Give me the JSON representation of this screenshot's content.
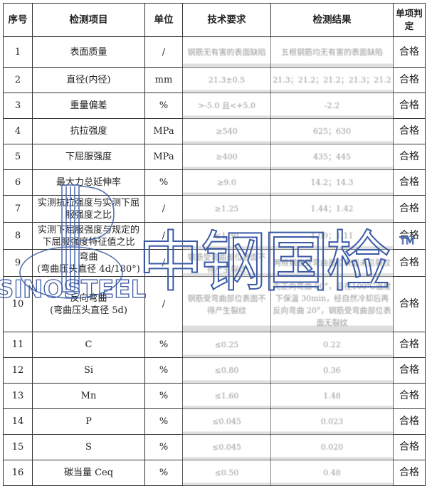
{
  "headers": [
    "序号",
    "检测项目",
    "单位",
    "技术要求",
    "检测结果",
    "单项判定"
  ],
  "rows": [
    {
      "no": "1",
      "item": "表面质量",
      "unit": "/",
      "req": "钢筋无有害的表面缺陷",
      "result": "五根钢筋均无有害的表面缺陷",
      "verdict": "合格"
    },
    {
      "no": "2",
      "item": "直径(内径)",
      "unit": "mm",
      "req": "21.3±0.5",
      "result": "21.3；21.2；21.2；21.3；21.2",
      "verdict": "合格"
    },
    {
      "no": "3",
      "item": "重量偏差",
      "unit": "%",
      "req": ">-5.0 且<+5.0",
      "result": "-2.2",
      "verdict": "合格"
    },
    {
      "no": "4",
      "item": "抗拉强度",
      "unit": "MPa",
      "req": "≥540",
      "result": "625；630",
      "verdict": "合格"
    },
    {
      "no": "5",
      "item": "下屈服强度",
      "unit": "MPa",
      "req": "≥400",
      "result": "435；445",
      "verdict": "合格"
    },
    {
      "no": "6",
      "item": "最大力总延伸率",
      "unit": "%",
      "req": "≥9.0",
      "result": "14.2；14.3",
      "verdict": "合格"
    },
    {
      "no": "7",
      "item": "实测抗拉强度与实测下屈服强度之比",
      "unit": "/",
      "req": "≥1.25",
      "result": "1.44；1.42",
      "verdict": "合格"
    },
    {
      "no": "8",
      "item": "实测下屈服强度与规定的下屈服强度特征值之比",
      "unit": "/",
      "req": "≤1.30",
      "result": "1.09；1.11",
      "verdict": "合格"
    },
    {
      "no": "9",
      "item": "弯曲\n(弯曲压头直径 4d/180°)",
      "unit": "/",
      "req": "钢筋受弯曲部位表面不得产生裂纹",
      "result": "两根钢筋受弯曲部位表面未见裂纹",
      "verdict": "合格"
    },
    {
      "no": "10",
      "item": "反向弯曲\n(弯曲压头直径 5d)",
      "unit": "/",
      "req": "钢筋受弯曲部位表面不得产生裂纹",
      "result": "先正向弯曲 90°，后在100℃温度下保温 30min，经自然冷却后再反向弯曲 20°，钢筋受弯曲部位表面无裂纹",
      "verdict": "合格"
    },
    {
      "no": "11",
      "item": "C",
      "unit": "%",
      "req": "≤0.25",
      "result": "0.22",
      "verdict": "合格"
    },
    {
      "no": "12",
      "item": "Si",
      "unit": "%",
      "req": "≤0.80",
      "result": "0.36",
      "verdict": "合格"
    },
    {
      "no": "13",
      "item": "Mn",
      "unit": "%",
      "req": "≤1.60",
      "result": "1.48",
      "verdict": "合格"
    },
    {
      "no": "14",
      "item": "P",
      "unit": "%",
      "req": "≤0.045",
      "result": "0.023",
      "verdict": "合格"
    },
    {
      "no": "15",
      "item": "S",
      "unit": "%",
      "req": "≤0.045",
      "result": "0.020",
      "verdict": "合格"
    },
    {
      "no": "16",
      "item": "碳当量 Ceq",
      "unit": "%",
      "req": "≤0.50",
      "result": "0.48",
      "verdict": "合格"
    }
  ],
  "watermark": {
    "brand": "SINOSTEEL",
    "cn": "中钢国检",
    "tm": "TM",
    "color": "#3a5aa6"
  }
}
